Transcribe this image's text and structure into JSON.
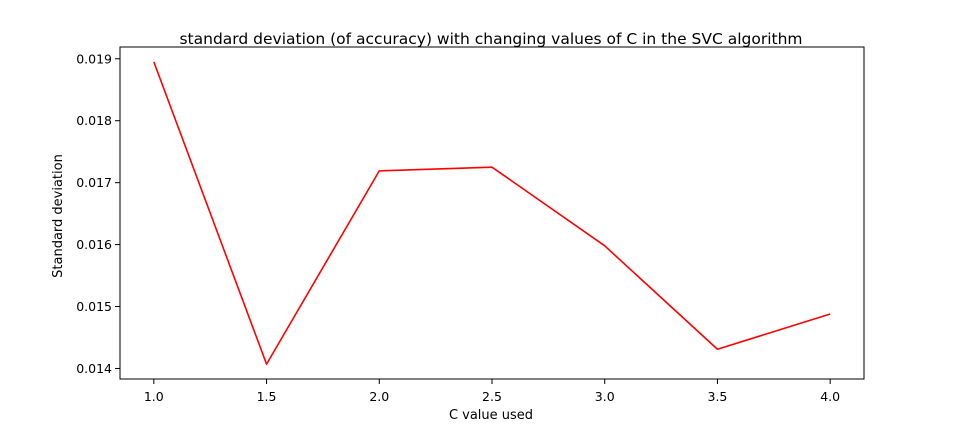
{
  "chart_data": {
    "type": "line",
    "title": "standard deviation (of accuracy) with changing values of C in the SVC algorithm",
    "xlabel": "C value used",
    "ylabel": "Standard deviation",
    "x": [
      1.0,
      1.5,
      2.0,
      2.5,
      3.0,
      3.5,
      4.0
    ],
    "series": [
      {
        "values": [
          0.01895,
          0.01407,
          0.01719,
          0.01725,
          0.01598,
          0.01431,
          0.01488
        ],
        "color": "#ff0000"
      }
    ],
    "xticks": [
      1.0,
      1.5,
      2.0,
      2.5,
      3.0,
      3.5,
      4.0
    ],
    "xtick_labels": [
      "1.0",
      "1.5",
      "2.0",
      "2.5",
      "3.0",
      "3.5",
      "4.0"
    ],
    "yticks": [
      0.014,
      0.015,
      0.016,
      0.017,
      0.018,
      0.019
    ],
    "ytick_labels": [
      "0.014",
      "0.015",
      "0.016",
      "0.017",
      "0.018",
      "0.019"
    ],
    "xlim": [
      0.85,
      4.15
    ],
    "ylim": [
      0.01383,
      0.01919
    ],
    "grid": false,
    "legend": false
  }
}
